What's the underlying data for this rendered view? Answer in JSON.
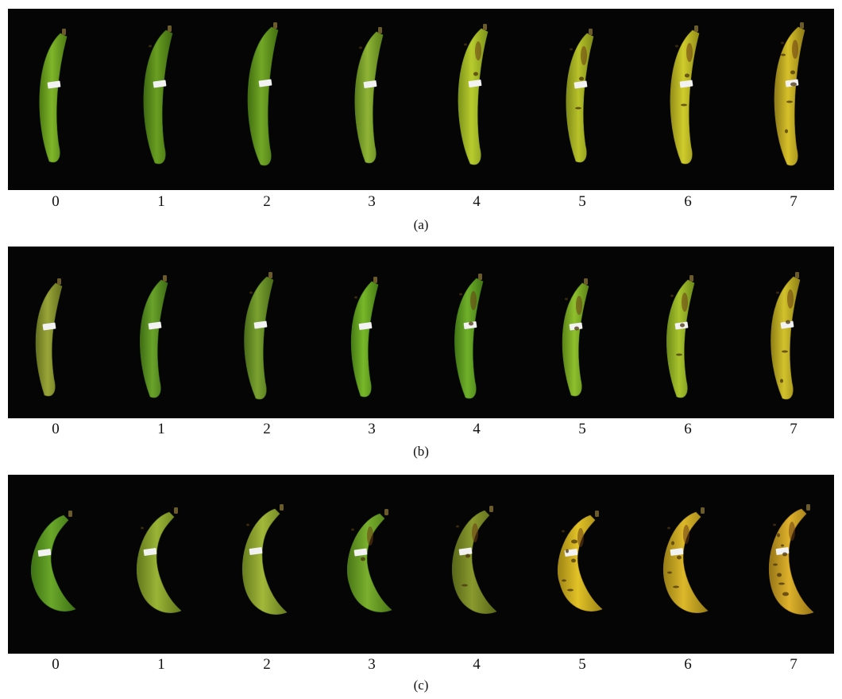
{
  "figure": {
    "panels": [
      {
        "id": "a",
        "caption": "(a)",
        "labels": [
          "0",
          "1",
          "2",
          "3",
          "4",
          "5",
          "6",
          "7"
        ],
        "bananas": [
          {
            "color": "#7fb52a",
            "shade": "#4e7d12",
            "spots": 0
          },
          {
            "color": "#6a9e22",
            "shade": "#3f6a10",
            "spots": 1
          },
          {
            "color": "#73a826",
            "shade": "#426f11",
            "spots": 0
          },
          {
            "color": "#8fb436",
            "shade": "#5b7f1a",
            "spots": 1
          },
          {
            "color": "#b9cc2e",
            "shade": "#7d931a",
            "spots": 2
          },
          {
            "color": "#b8c22a",
            "shade": "#7f8a18",
            "spots": 3
          },
          {
            "color": "#cfcc2c",
            "shade": "#928d18",
            "spots": 3
          },
          {
            "color": "#d7c02a",
            "shade": "#8e7b16",
            "spots": 6
          }
        ]
      },
      {
        "id": "b",
        "caption": "(b)",
        "labels": [
          "0",
          "1",
          "2",
          "3",
          "4",
          "5",
          "6",
          "7"
        ],
        "bananas": [
          {
            "color": "#9aa638",
            "shade": "#64701e",
            "spots": 0
          },
          {
            "color": "#6aa32a",
            "shade": "#3e6c14",
            "spots": 0
          },
          {
            "color": "#7aa230",
            "shade": "#4a6c18",
            "spots": 1
          },
          {
            "color": "#78b82a",
            "shade": "#467c14",
            "spots": 1
          },
          {
            "color": "#6fb02a",
            "shade": "#417614",
            "spots": 2
          },
          {
            "color": "#8fc02e",
            "shade": "#5a8416",
            "spots": 2
          },
          {
            "color": "#a9c42e",
            "shade": "#6d8a18",
            "spots": 3
          },
          {
            "color": "#d2c22c",
            "shade": "#8f8016",
            "spots": 4
          }
        ]
      },
      {
        "id": "c",
        "caption": "(c)",
        "labels": [
          "0",
          "1",
          "2",
          "3",
          "4",
          "5",
          "6",
          "7"
        ],
        "bananas": [
          {
            "color": "#6aa82a",
            "shade": "#3e7214",
            "spots": 0
          },
          {
            "color": "#9ab436",
            "shade": "#62781c",
            "spots": 1
          },
          {
            "color": "#a2b83a",
            "shade": "#667c1e",
            "spots": 1
          },
          {
            "color": "#7ab02e",
            "shade": "#4a7616",
            "spots": 2
          },
          {
            "color": "#8a9a2e",
            "shade": "#586618",
            "spots": 3
          },
          {
            "color": "#e2c228",
            "shade": "#9e8414",
            "spots": 6
          },
          {
            "color": "#dcb82a",
            "shade": "#977d16",
            "spots": 5
          },
          {
            "color": "#dfb22c",
            "shade": "#957416",
            "spots": 8
          }
        ]
      }
    ]
  }
}
